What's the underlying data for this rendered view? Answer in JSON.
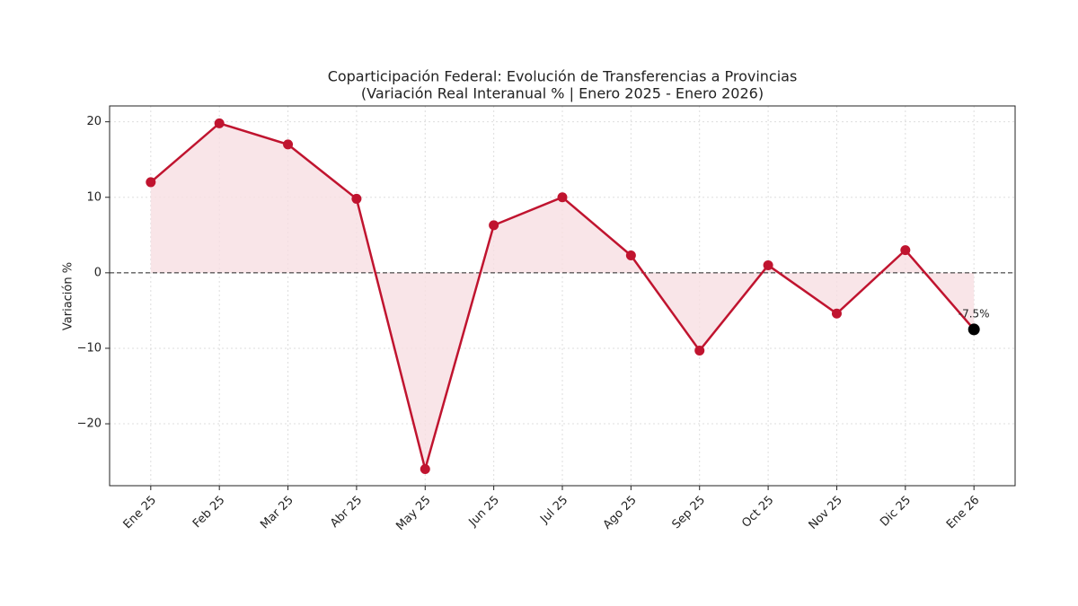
{
  "chart_data": {
    "type": "line",
    "title": "Coparticipación Federal: Evolución de Transferencias a Provincias",
    "subtitle": "(Variación Real Interanual % | Enero 2025 - Enero 2026)",
    "y_label": "Variación %",
    "categories": [
      "Ene 25",
      "Feb 25",
      "Mar 25",
      "Abr 25",
      "May 25",
      "Jun 25",
      "Jul 25",
      "Ago 25",
      "Sep 25",
      "Oct 25",
      "Nov 25",
      "Dic 25",
      "Ene 26"
    ],
    "values": [
      12,
      19.8,
      17,
      9.8,
      -26,
      6.3,
      10,
      2.3,
      -10.3,
      1,
      -5.4,
      3,
      -7.5
    ],
    "value_labels": [
      null,
      null,
      null,
      null,
      null,
      null,
      null,
      null,
      null,
      null,
      null,
      null,
      "-7.5%"
    ],
    "color": "#c0142f",
    "fill_color": "#f8dfe2",
    "highlight_color": "#000000",
    "reference_line": 0,
    "ylim": [
      -28.2,
      22.1
    ],
    "yticks": [
      {
        "value": -20,
        "label": "−20"
      },
      {
        "value": -10,
        "label": "−10"
      },
      0,
      10,
      20
    ],
    "grid": true
  }
}
